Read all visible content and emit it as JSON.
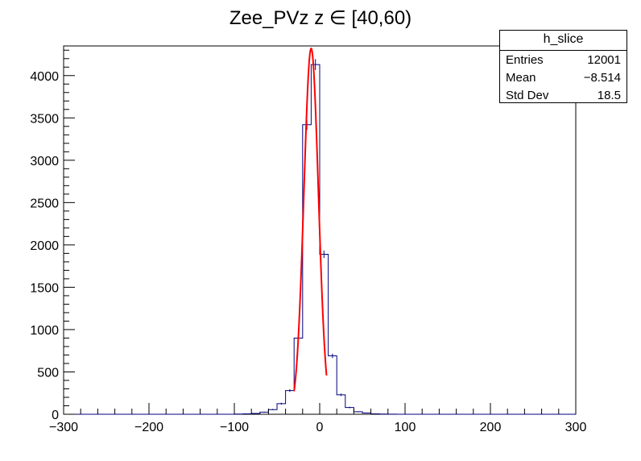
{
  "chart_data": {
    "type": "bar",
    "title": "Zee_PVz z  ∈ [40,60)",
    "xlabel": "",
    "ylabel": "",
    "xlim": [
      -300,
      300
    ],
    "ylim": [
      0,
      4350
    ],
    "x_ticks": [
      -300,
      -200,
      -100,
      0,
      100,
      200,
      300
    ],
    "y_ticks": [
      0,
      500,
      1000,
      1500,
      2000,
      2500,
      3000,
      3500,
      4000
    ],
    "grid": false,
    "histogram": {
      "bin_width": 10,
      "edges": [
        -300,
        -290,
        -280,
        -270,
        -260,
        -250,
        -240,
        -230,
        -220,
        -210,
        -200,
        -190,
        -180,
        -170,
        -160,
        -150,
        -140,
        -130,
        -120,
        -110,
        -100,
        -90,
        -80,
        -70,
        -60,
        -50,
        -40,
        -30,
        -20,
        -10,
        0,
        10,
        20,
        30,
        40,
        50,
        60,
        70,
        80,
        90,
        100,
        110,
        120,
        130,
        140,
        150,
        160,
        170,
        180,
        190,
        200,
        210,
        220,
        230,
        240,
        250,
        260,
        270,
        280,
        290,
        300
      ],
      "counts": [
        0,
        0,
        0,
        0,
        0,
        0,
        0,
        0,
        0,
        0,
        0,
        0,
        0,
        0,
        0,
        0,
        0,
        0,
        0,
        0,
        2,
        5,
        10,
        25,
        55,
        125,
        280,
        900,
        3420,
        4130,
        1890,
        690,
        230,
        80,
        30,
        15,
        5,
        2,
        1,
        0,
        0,
        0,
        0,
        0,
        0,
        0,
        0,
        0,
        0,
        0,
        0,
        0,
        0,
        0,
        0,
        0,
        0,
        0,
        0,
        0
      ],
      "color": "#000080"
    },
    "fit": {
      "function": "gaus",
      "constant": 4320,
      "mean": -10,
      "sigma": 8.5,
      "x_range": [
        -30,
        8
      ],
      "color": "#ff0000"
    },
    "stats_box": {
      "title": "h_slice",
      "rows": [
        {
          "label": "Entries",
          "value": "12001"
        },
        {
          "label": "Mean",
          "value": "−8.514"
        },
        {
          "label": "Std Dev",
          "value": "18.5"
        }
      ]
    }
  }
}
